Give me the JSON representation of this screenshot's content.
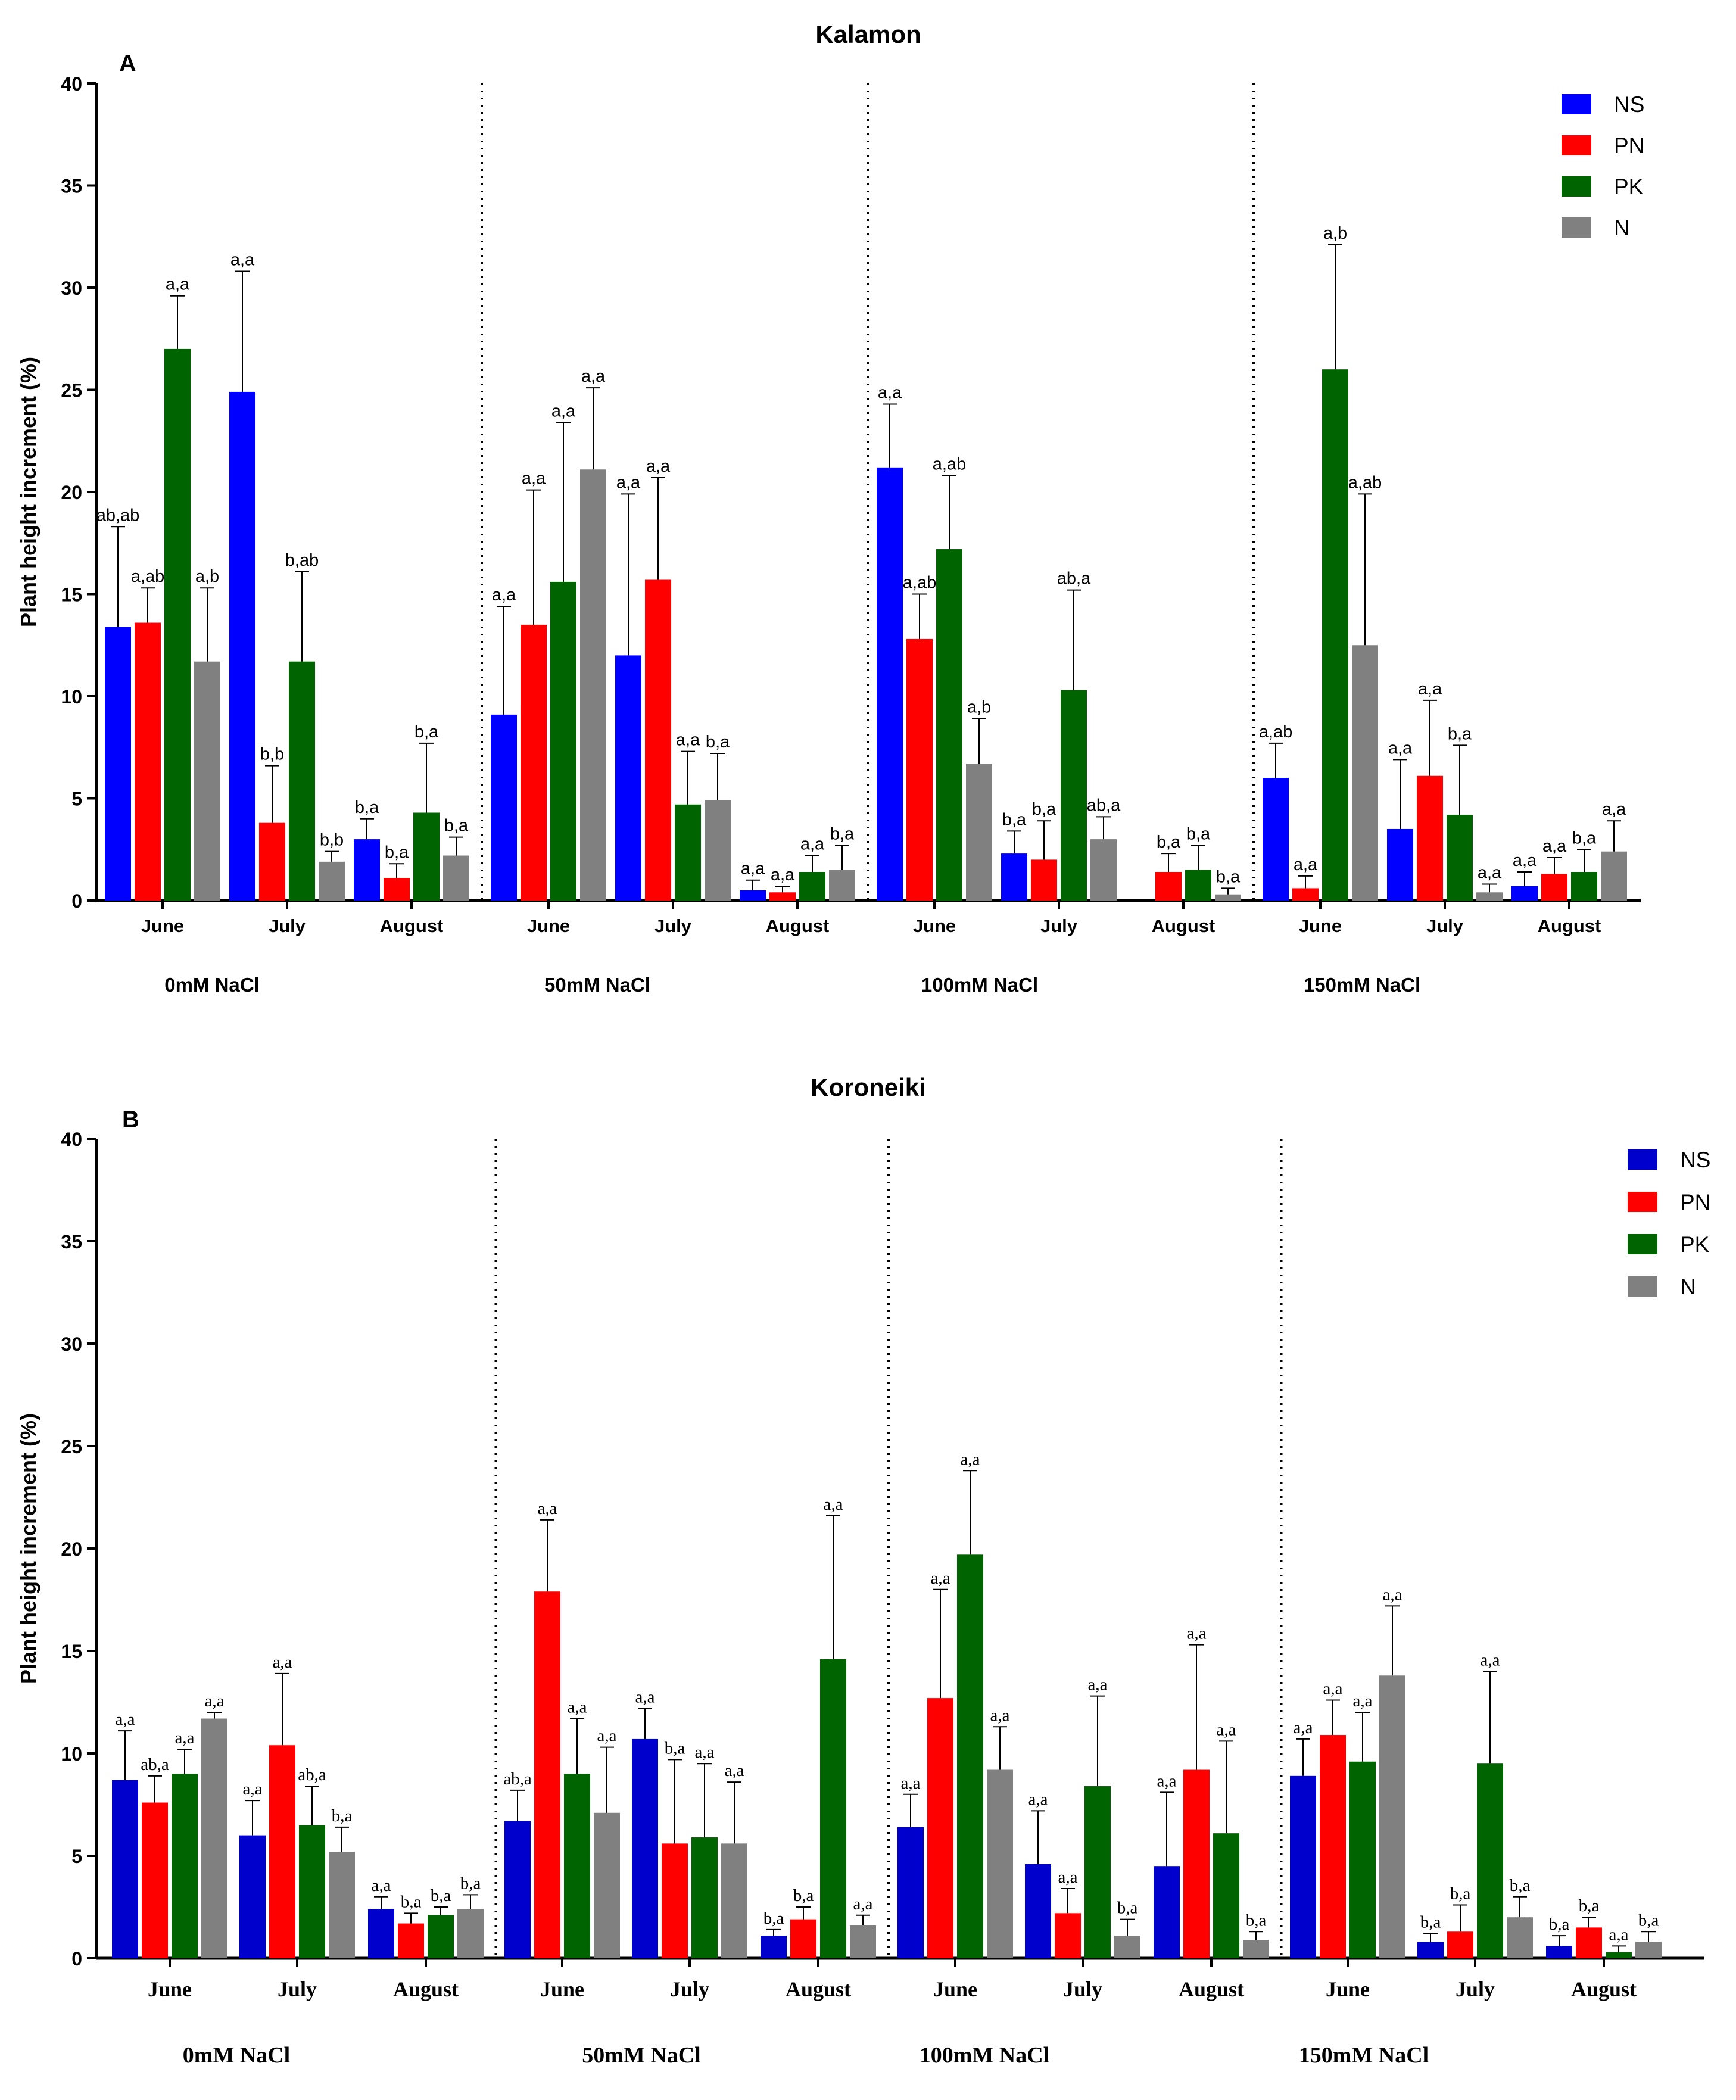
{
  "chart_data": [
    {
      "panel": "A",
      "type": "bar",
      "title": "Kalamon",
      "ylabel": "Plant height increment (%)",
      "xlabel": "",
      "ylim": [
        0,
        40
      ],
      "yticks": [
        0,
        5,
        10,
        15,
        20,
        25,
        30,
        35,
        40
      ],
      "grid": false,
      "legend_position": "top-right",
      "colors": [
        "#0000FF",
        "#FF0000",
        "#006400",
        "#808080"
      ],
      "series": [
        "NS",
        "PN",
        "PK",
        "N"
      ],
      "groups": [
        {
          "label": "0mM NaCl",
          "months": [
            {
              "month": "June",
              "values": [
                13.4,
                13.6,
                27.0,
                11.7
              ],
              "errors": [
                18.3,
                15.3,
                29.6,
                15.3
              ],
              "letters": [
                "ab,ab",
                "a,ab",
                "a,a",
                "a,b"
              ]
            },
            {
              "month": "July",
              "values": [
                24.9,
                3.8,
                11.7,
                1.9
              ],
              "errors": [
                30.8,
                6.6,
                16.1,
                2.4
              ],
              "letters": [
                "a,a",
                "b,b",
                "b,ab",
                "b,b"
              ]
            },
            {
              "month": "August",
              "values": [
                3.0,
                1.1,
                4.3,
                2.2
              ],
              "errors": [
                4.0,
                1.8,
                7.7,
                3.1
              ],
              "letters": [
                "b,a",
                "b,a",
                "b,a",
                "b,a"
              ]
            }
          ]
        },
        {
          "label": "50mM NaCl",
          "months": [
            {
              "month": "June",
              "values": [
                9.1,
                13.5,
                15.6,
                21.1
              ],
              "errors": [
                14.4,
                20.1,
                23.4,
                25.1
              ],
              "letters": [
                "a,a",
                "a,a",
                "a,a",
                "a,a"
              ]
            },
            {
              "month": "July",
              "values": [
                12.0,
                15.7,
                4.7,
                4.9
              ],
              "errors": [
                19.9,
                20.7,
                7.3,
                7.2
              ],
              "letters": [
                "a,a",
                "a,a",
                "a,a",
                "b,a"
              ]
            },
            {
              "month": "August",
              "values": [
                0.5,
                0.4,
                1.4,
                1.5
              ],
              "errors": [
                1.0,
                0.7,
                2.2,
                2.7
              ],
              "letters": [
                "a,a",
                "a,a",
                "a,a",
                "b,a"
              ]
            }
          ]
        },
        {
          "label": "100mM NaCl",
          "months": [
            {
              "month": "June",
              "values": [
                21.2,
                12.8,
                17.2,
                6.7
              ],
              "errors": [
                24.3,
                15.0,
                20.8,
                8.9
              ],
              "letters": [
                "a,a",
                "a,ab",
                "a,ab",
                "a,b"
              ]
            },
            {
              "month": "July",
              "values": [
                2.3,
                2.0,
                10.3,
                3.0
              ],
              "errors": [
                3.4,
                3.9,
                15.2,
                4.1
              ],
              "letters": [
                "b,a",
                "b,a",
                "ab,a",
                "ab,a"
              ]
            },
            {
              "month": "August",
              "values": [
                0,
                1.4,
                1.5,
                0.3
              ],
              "errors": [
                null,
                2.3,
                2.7,
                0.6
              ],
              "letters": [
                "",
                "b,a",
                "b,a",
                "b,a"
              ]
            }
          ]
        },
        {
          "label": "150mM NaCl",
          "months": [
            {
              "month": "June",
              "values": [
                6.0,
                0.6,
                26.0,
                12.5
              ],
              "errors": [
                7.7,
                1.2,
                32.1,
                19.9
              ],
              "letters": [
                "a,ab",
                "a,a",
                "a,b",
                "a,ab"
              ]
            },
            {
              "month": "July",
              "values": [
                3.5,
                6.1,
                4.2,
                0.4
              ],
              "errors": [
                6.9,
                9.8,
                7.6,
                0.8
              ],
              "letters": [
                "a,a",
                "a,a",
                "b,a",
                "a,a"
              ]
            },
            {
              "month": "August",
              "values": [
                0.7,
                1.3,
                1.4,
                2.4
              ],
              "errors": [
                1.4,
                2.1,
                2.5,
                3.9
              ],
              "letters": [
                "a,a",
                "a,a",
                "b,a",
                "a,a"
              ]
            }
          ]
        }
      ]
    },
    {
      "panel": "B",
      "type": "bar",
      "title": "Koroneiki",
      "ylabel": "Plant height increment (%)",
      "xlabel": "",
      "ylim": [
        0,
        40
      ],
      "yticks": [
        0,
        5,
        10,
        15,
        20,
        25,
        30,
        35,
        40
      ],
      "grid": false,
      "legend_position": "top-right",
      "colors": [
        "#0000CC",
        "#FF0000",
        "#006400",
        "#808080"
      ],
      "series": [
        "NS",
        "PN",
        "PK",
        "N"
      ],
      "groups": [
        {
          "label": "0mM NaCl",
          "months": [
            {
              "month": "June",
              "values": [
                8.7,
                7.6,
                9.0,
                11.7
              ],
              "errors": [
                11.1,
                8.9,
                10.2,
                12.0
              ],
              "letters": [
                "a,a",
                "ab,a",
                "a,a",
                "a,a"
              ]
            },
            {
              "month": "July",
              "values": [
                6.0,
                10.4,
                6.5,
                5.2
              ],
              "errors": [
                7.7,
                13.9,
                8.4,
                6.4
              ],
              "letters": [
                "a,a",
                "a,a",
                "ab,a",
                "b,a"
              ]
            },
            {
              "month": "August",
              "values": [
                2.4,
                1.7,
                2.1,
                2.4
              ],
              "errors": [
                3.0,
                2.2,
                2.5,
                3.1
              ],
              "letters": [
                "a,a",
                "b,a",
                "b,a",
                "b,a"
              ]
            }
          ]
        },
        {
          "label": "50mM NaCl",
          "months": [
            {
              "month": "June",
              "values": [
                6.7,
                17.9,
                9.0,
                7.1
              ],
              "errors": [
                8.2,
                21.4,
                11.7,
                10.3
              ],
              "letters": [
                "ab,a",
                "a,a",
                "a,a",
                "a,a"
              ]
            },
            {
              "month": "July",
              "values": [
                10.7,
                5.6,
                5.9,
                5.6
              ],
              "errors": [
                12.2,
                9.7,
                9.5,
                8.6
              ],
              "letters": [
                "a,a",
                "b,a",
                "a,a",
                "a,a"
              ]
            },
            {
              "month": "August",
              "values": [
                1.1,
                1.9,
                14.6,
                1.6
              ],
              "errors": [
                1.4,
                2.5,
                21.6,
                2.1
              ],
              "letters": [
                "b,a",
                "b,a",
                "a,a",
                "a,a"
              ]
            }
          ]
        },
        {
          "label": "100mM NaCl",
          "months": [
            {
              "month": "June",
              "values": [
                6.4,
                12.7,
                19.7,
                9.2
              ],
              "errors": [
                8.0,
                18.0,
                23.8,
                11.3
              ],
              "letters": [
                "a,a",
                "a,a",
                "a,a",
                "a,a"
              ]
            },
            {
              "month": "July",
              "values": [
                4.6,
                2.2,
                8.4,
                1.1
              ],
              "errors": [
                7.2,
                3.4,
                12.8,
                1.9
              ],
              "letters": [
                "a,a",
                "a,a",
                "a,a",
                "b,a"
              ]
            },
            {
              "month": "August",
              "values": [
                4.5,
                9.2,
                6.1,
                0.9
              ],
              "errors": [
                8.1,
                15.3,
                10.6,
                1.3
              ],
              "letters": [
                "a,a",
                "a,a",
                "a,a",
                "b,a"
              ]
            }
          ]
        },
        {
          "label": "150mM NaCl",
          "months": [
            {
              "month": "June",
              "values": [
                8.9,
                10.9,
                9.6,
                13.8
              ],
              "errors": [
                10.7,
                12.6,
                12.0,
                17.2
              ],
              "letters": [
                "a,a",
                "a,a",
                "a,a",
                "a,a"
              ]
            },
            {
              "month": "July",
              "values": [
                0.8,
                1.3,
                9.5,
                2.0
              ],
              "errors": [
                1.2,
                2.6,
                14.0,
                3.0
              ],
              "letters": [
                "b,a",
                "b,a",
                "a,a",
                "b,a"
              ]
            },
            {
              "month": "August",
              "values": [
                0.6,
                1.5,
                0.3,
                0.8
              ],
              "errors": [
                1.1,
                2.0,
                0.6,
                1.3
              ],
              "letters": [
                "b,a",
                "b,a",
                "a,a",
                "b,a"
              ]
            }
          ]
        }
      ]
    }
  ]
}
